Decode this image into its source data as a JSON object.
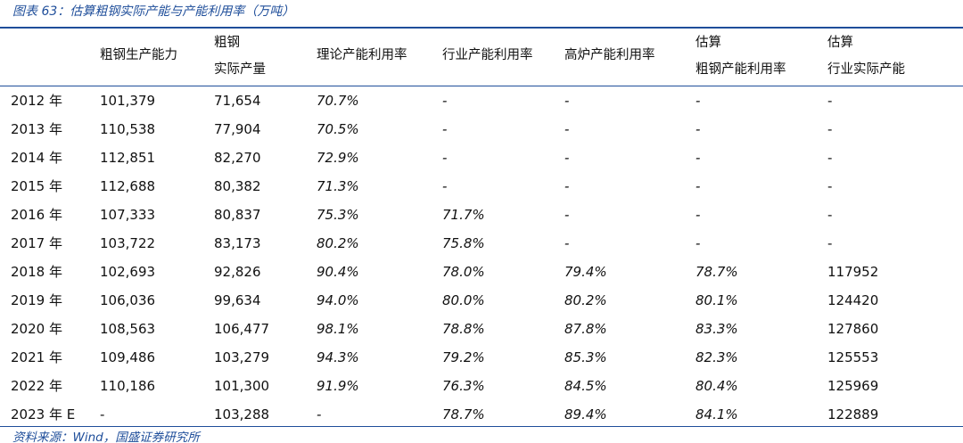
{
  "caption": "图表 63：估算粗钢实际产能与产能利用率（万吨）",
  "headers": {
    "col1": "粗钢生产能力",
    "col2_line1": "粗钢",
    "col2_line2": "实际产量",
    "col3": "理论产能利用率",
    "col4": "行业产能利用率",
    "col5": "高炉产能利用率",
    "col6_line1": "估算",
    "col6_line2": "粗钢产能利用率",
    "col7_line1": "估算",
    "col7_line2": "行业实际产能"
  },
  "rows": [
    {
      "year": "2012 年",
      "capacity": "101,379",
      "output": "71,654",
      "theory": "70.7%",
      "industry": "-",
      "furnace": "-",
      "est_util": "-",
      "est_cap": "-"
    },
    {
      "year": "2013 年",
      "capacity": "110,538",
      "output": "77,904",
      "theory": "70.5%",
      "industry": "-",
      "furnace": "-",
      "est_util": "-",
      "est_cap": "-"
    },
    {
      "year": "2014 年",
      "capacity": "112,851",
      "output": "82,270",
      "theory": "72.9%",
      "industry": "-",
      "furnace": "-",
      "est_util": "-",
      "est_cap": "-"
    },
    {
      "year": "2015 年",
      "capacity": "112,688",
      "output": "80,382",
      "theory": "71.3%",
      "industry": "-",
      "furnace": "-",
      "est_util": "-",
      "est_cap": "-"
    },
    {
      "year": "2016 年",
      "capacity": "107,333",
      "output": "80,837",
      "theory": "75.3%",
      "industry": "71.7%",
      "furnace": "-",
      "est_util": "-",
      "est_cap": "-"
    },
    {
      "year": "2017 年",
      "capacity": "103,722",
      "output": "83,173",
      "theory": "80.2%",
      "industry": "75.8%",
      "furnace": "-",
      "est_util": "-",
      "est_cap": "-"
    },
    {
      "year": "2018 年",
      "capacity": "102,693",
      "output": "92,826",
      "theory": "90.4%",
      "industry": "78.0%",
      "furnace": "79.4%",
      "est_util": "78.7%",
      "est_cap": "117952"
    },
    {
      "year": "2019 年",
      "capacity": "106,036",
      "output": "99,634",
      "theory": "94.0%",
      "industry": "80.0%",
      "furnace": "80.2%",
      "est_util": "80.1%",
      "est_cap": "124420"
    },
    {
      "year": "2020 年",
      "capacity": "108,563",
      "output": "106,477",
      "theory": "98.1%",
      "industry": "78.8%",
      "furnace": "87.8%",
      "est_util": "83.3%",
      "est_cap": "127860"
    },
    {
      "year": "2021 年",
      "capacity": "109,486",
      "output": "103,279",
      "theory": "94.3%",
      "industry": "79.2%",
      "furnace": "85.3%",
      "est_util": "82.3%",
      "est_cap": "125553"
    },
    {
      "year": "2022 年",
      "capacity": "110,186",
      "output": "101,300",
      "theory": "91.9%",
      "industry": "76.3%",
      "furnace": "84.5%",
      "est_util": "80.4%",
      "est_cap": "125969"
    },
    {
      "year": "2023 年 E",
      "capacity": "-",
      "output": "103,288",
      "theory": "-",
      "industry": "78.7%",
      "furnace": "89.4%",
      "est_util": "84.1%",
      "est_cap": "122889"
    }
  ],
  "source": "资料来源：Wind，国盛证券研究所"
}
